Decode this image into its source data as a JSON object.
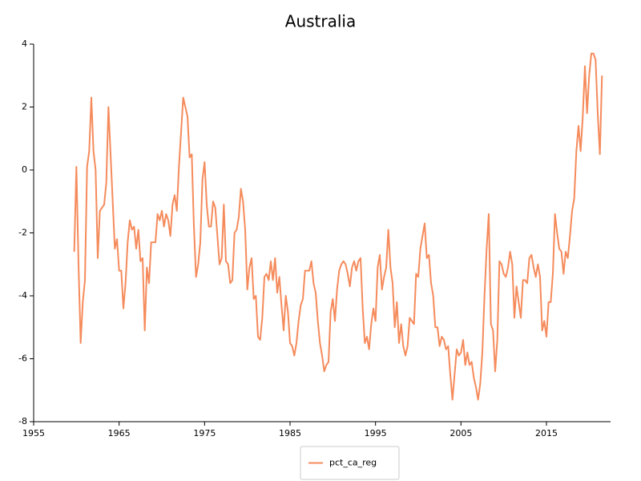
{
  "chart_data": {
    "type": "line",
    "title": "Australia",
    "x": [
      1959.75,
      1960,
      1960.25,
      1960.5,
      1960.75,
      1961,
      1961.25,
      1961.5,
      1961.75,
      1962,
      1962.25,
      1962.5,
      1962.75,
      1963,
      1963.25,
      1963.5,
      1963.75,
      1964,
      1964.25,
      1964.5,
      1964.75,
      1965,
      1965.25,
      1965.5,
      1965.75,
      1966,
      1966.25,
      1966.5,
      1966.75,
      1967,
      1967.25,
      1967.5,
      1967.75,
      1968,
      1968.25,
      1968.5,
      1968.75,
      1969,
      1969.25,
      1969.5,
      1969.75,
      1970,
      1970.25,
      1970.5,
      1970.75,
      1971,
      1971.25,
      1971.5,
      1971.75,
      1972,
      1972.25,
      1972.5,
      1972.75,
      1973,
      1973.25,
      1973.5,
      1973.75,
      1974,
      1974.25,
      1974.5,
      1974.75,
      1975,
      1975.25,
      1975.5,
      1975.75,
      1976,
      1976.25,
      1976.5,
      1976.75,
      1977,
      1977.25,
      1977.5,
      1977.75,
      1978,
      1978.25,
      1978.5,
      1978.75,
      1979,
      1979.25,
      1979.5,
      1979.75,
      1980,
      1980.25,
      1980.5,
      1980.75,
      1981,
      1981.25,
      1981.5,
      1981.75,
      1982,
      1982.25,
      1982.5,
      1982.75,
      1983,
      1983.25,
      1983.5,
      1983.75,
      1984,
      1984.25,
      1984.5,
      1984.75,
      1985,
      1985.25,
      1985.5,
      1985.75,
      1986,
      1986.25,
      1986.5,
      1986.75,
      1987,
      1987.25,
      1987.5,
      1987.75,
      1988,
      1988.25,
      1988.5,
      1988.75,
      1989,
      1989.25,
      1989.5,
      1989.75,
      1990,
      1990.25,
      1990.5,
      1990.75,
      1991,
      1991.25,
      1991.5,
      1991.75,
      1992,
      1992.25,
      1992.5,
      1992.75,
      1993,
      1993.25,
      1993.5,
      1993.75,
      1994,
      1994.25,
      1994.5,
      1994.75,
      1995,
      1995.25,
      1995.5,
      1995.75,
      1996,
      1996.25,
      1996.5,
      1996.75,
      1997,
      1997.25,
      1997.5,
      1997.75,
      1998,
      1998.25,
      1998.5,
      1998.75,
      1999,
      1999.25,
      1999.5,
      1999.75,
      2000,
      2000.25,
      2000.5,
      2000.75,
      2001,
      2001.25,
      2001.5,
      2001.75,
      2002,
      2002.25,
      2002.5,
      2002.75,
      2003,
      2003.25,
      2003.5,
      2003.75,
      2004,
      2004.25,
      2004.5,
      2004.75,
      2005,
      2005.25,
      2005.5,
      2005.75,
      2006,
      2006.25,
      2006.5,
      2006.75,
      2007,
      2007.25,
      2007.5,
      2007.75,
      2008,
      2008.25,
      2008.5,
      2008.75,
      2009,
      2009.25,
      2009.5,
      2009.75,
      2010,
      2010.25,
      2010.5,
      2010.75,
      2011,
      2011.25,
      2011.5,
      2011.75,
      2012,
      2012.25,
      2012.5,
      2012.75,
      2013,
      2013.25,
      2013.5,
      2013.75,
      2014,
      2014.25,
      2014.5,
      2014.75,
      2015,
      2015.25,
      2015.5,
      2015.75,
      2016,
      2016.25,
      2016.5,
      2016.75,
      2017,
      2017.25,
      2017.5,
      2017.75,
      2018,
      2018.25,
      2018.5,
      2018.75,
      2019,
      2019.25,
      2019.5,
      2019.75,
      2020,
      2020.25,
      2020.5,
      2020.75,
      2021,
      2021.25,
      2021.5
    ],
    "series": [
      {
        "name": "pct_ca_reg",
        "color": "#f58b5c",
        "values": [
          -2.6,
          0.1,
          -3,
          -5.5,
          -4.2,
          -3.5,
          0.1,
          0.6,
          2.3,
          0.6,
          0,
          -2.8,
          -1.3,
          -1.2,
          -1.1,
          -0.4,
          2,
          0.5,
          -1,
          -2.5,
          -2.2,
          -3.2,
          -3.2,
          -4.4,
          -3.6,
          -2.3,
          -1.6,
          -1.9,
          -1.8,
          -2.5,
          -1.9,
          -2.9,
          -2.8,
          -5.1,
          -3.1,
          -3.6,
          -2.3,
          -2.3,
          -2.3,
          -1.4,
          -1.6,
          -1.3,
          -1.8,
          -1.4,
          -1.6,
          -2.1,
          -1.1,
          -0.8,
          -1.3,
          0.1,
          1.2,
          2.3,
          2,
          1.7,
          0.4,
          0.5,
          -1.8,
          -3.4,
          -3,
          -2.3,
          -0.3,
          0.25,
          -1.1,
          -1.8,
          -1.8,
          -1,
          -1.2,
          -2.1,
          -3,
          -2.8,
          -1.1,
          -2.9,
          -3,
          -3.6,
          -3.5,
          -2,
          -1.9,
          -1.5,
          -0.6,
          -1,
          -1.9,
          -3.8,
          -3.1,
          -2.8,
          -4.1,
          -4,
          -5.3,
          -5.4,
          -4.7,
          -3.4,
          -3.3,
          -3.5,
          -2.9,
          -3.5,
          -2.8,
          -3.9,
          -3.4,
          -4.3,
          -5.1,
          -4,
          -4.5,
          -5.5,
          -5.6,
          -5.9,
          -5.5,
          -4.8,
          -4.3,
          -4.1,
          -3.2,
          -3.2,
          -3.2,
          -2.9,
          -3.6,
          -3.9,
          -4.8,
          -5.5,
          -5.9,
          -6.4,
          -6.2,
          -6.1,
          -4.5,
          -4.1,
          -4.8,
          -3.8,
          -3.2,
          -3,
          -2.9,
          -3,
          -3.3,
          -3.7,
          -3.1,
          -2.9,
          -3.2,
          -2.9,
          -2.8,
          -4.4,
          -5.5,
          -5.3,
          -5.7,
          -4.9,
          -4.4,
          -4.8,
          -3.1,
          -2.7,
          -3.8,
          -3.4,
          -3.1,
          -1.9,
          -3.1,
          -3.6,
          -5,
          -4.2,
          -5.5,
          -4.9,
          -5.6,
          -5.9,
          -5.6,
          -4.7,
          -4.8,
          -4.9,
          -3.3,
          -3.4,
          -2.5,
          -2.1,
          -1.7,
          -2.8,
          -2.7,
          -3.6,
          -4,
          -5,
          -5,
          -5.6,
          -5.3,
          -5.4,
          -5.7,
          -5.6,
          -6.5,
          -7.3,
          -6.5,
          -5.7,
          -5.9,
          -5.8,
          -5.4,
          -6.2,
          -5.8,
          -6.2,
          -6.1,
          -6.6,
          -6.9,
          -7.3,
          -6.8,
          -5.8,
          -4,
          -2.5,
          -1.4,
          -4.9,
          -5.1,
          -6.4,
          -5.4,
          -2.9,
          -3,
          -3.3,
          -3.4,
          -3.1,
          -2.6,
          -3,
          -4.7,
          -3.7,
          -4.2,
          -4.7,
          -3.5,
          -3.5,
          -3.6,
          -2.8,
          -2.7,
          -3.1,
          -3.4,
          -3,
          -3.4,
          -5.1,
          -4.8,
          -5.3,
          -4.2,
          -4.2,
          -3.3,
          -1.4,
          -2,
          -2.5,
          -2.6,
          -3.3,
          -2.6,
          -2.8,
          -2.1,
          -1.3,
          -0.9,
          0.6,
          1.4,
          0.6,
          1.7,
          3.3,
          1.8,
          3,
          3.7,
          3.7,
          3.5,
          1.8,
          0.5,
          3
        ]
      }
    ],
    "xlim": [
      1955,
      2022.5
    ],
    "xticks": [
      1955,
      1965,
      1975,
      1985,
      1995,
      2005,
      2015
    ],
    "ylim": [
      -8,
      4
    ],
    "yticks": [
      -8,
      -6,
      -4,
      -2,
      0,
      2,
      4
    ],
    "grid": false,
    "legend": "bottom"
  }
}
